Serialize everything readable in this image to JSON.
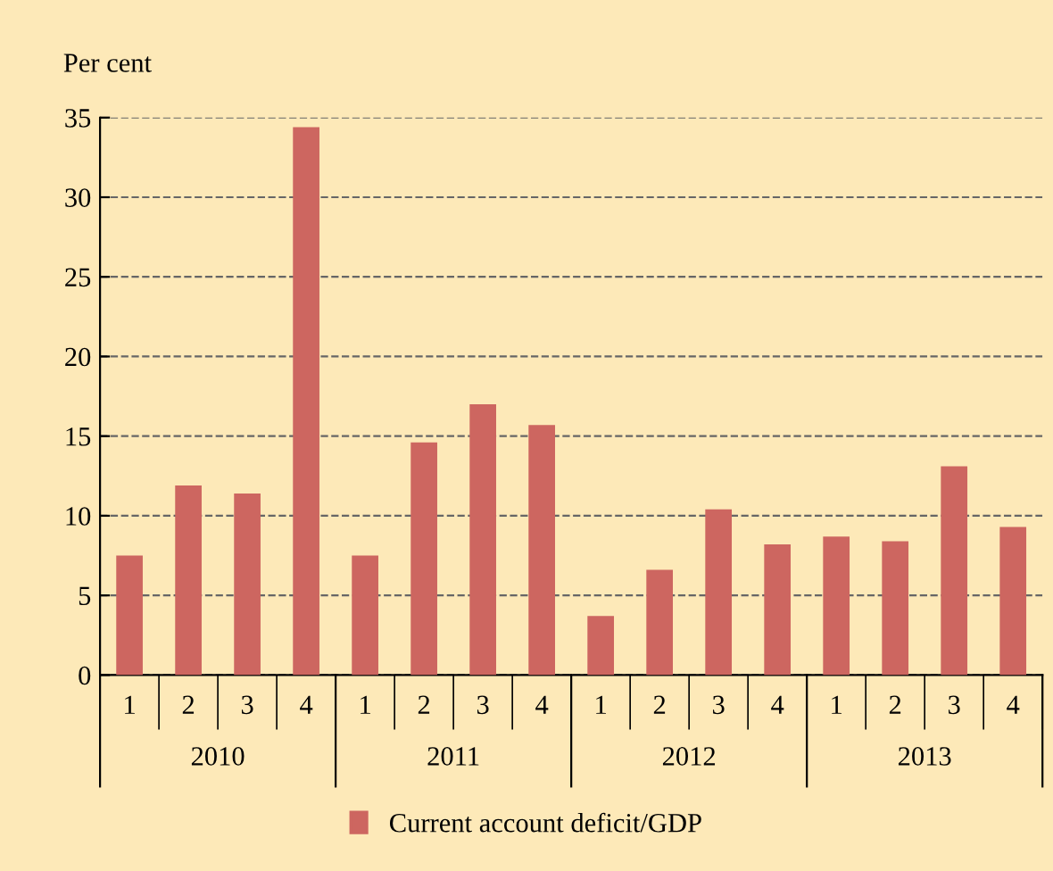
{
  "chart_data": {
    "type": "bar",
    "ylabel": "Per cent",
    "categories": [
      "1",
      "2",
      "3",
      "4",
      "1",
      "2",
      "3",
      "4",
      "1",
      "2",
      "3",
      "4",
      "1",
      "2",
      "3",
      "4"
    ],
    "series": [
      {
        "name": "Current account deficit/GDP",
        "color": "#cd6660",
        "values": [
          7.5,
          11.9,
          11.4,
          34.4,
          7.5,
          14.6,
          17.0,
          15.7,
          3.7,
          6.6,
          10.4,
          8.2,
          8.7,
          8.4,
          13.1,
          9.3
        ]
      }
    ],
    "annotations": [
      "2010",
      "2011",
      "2012",
      "2013"
    ],
    "ylim": [
      0,
      35
    ],
    "yticks": [
      0,
      5,
      10,
      15,
      20,
      25,
      30,
      35
    ],
    "grid": "y",
    "legend": "bottom"
  }
}
